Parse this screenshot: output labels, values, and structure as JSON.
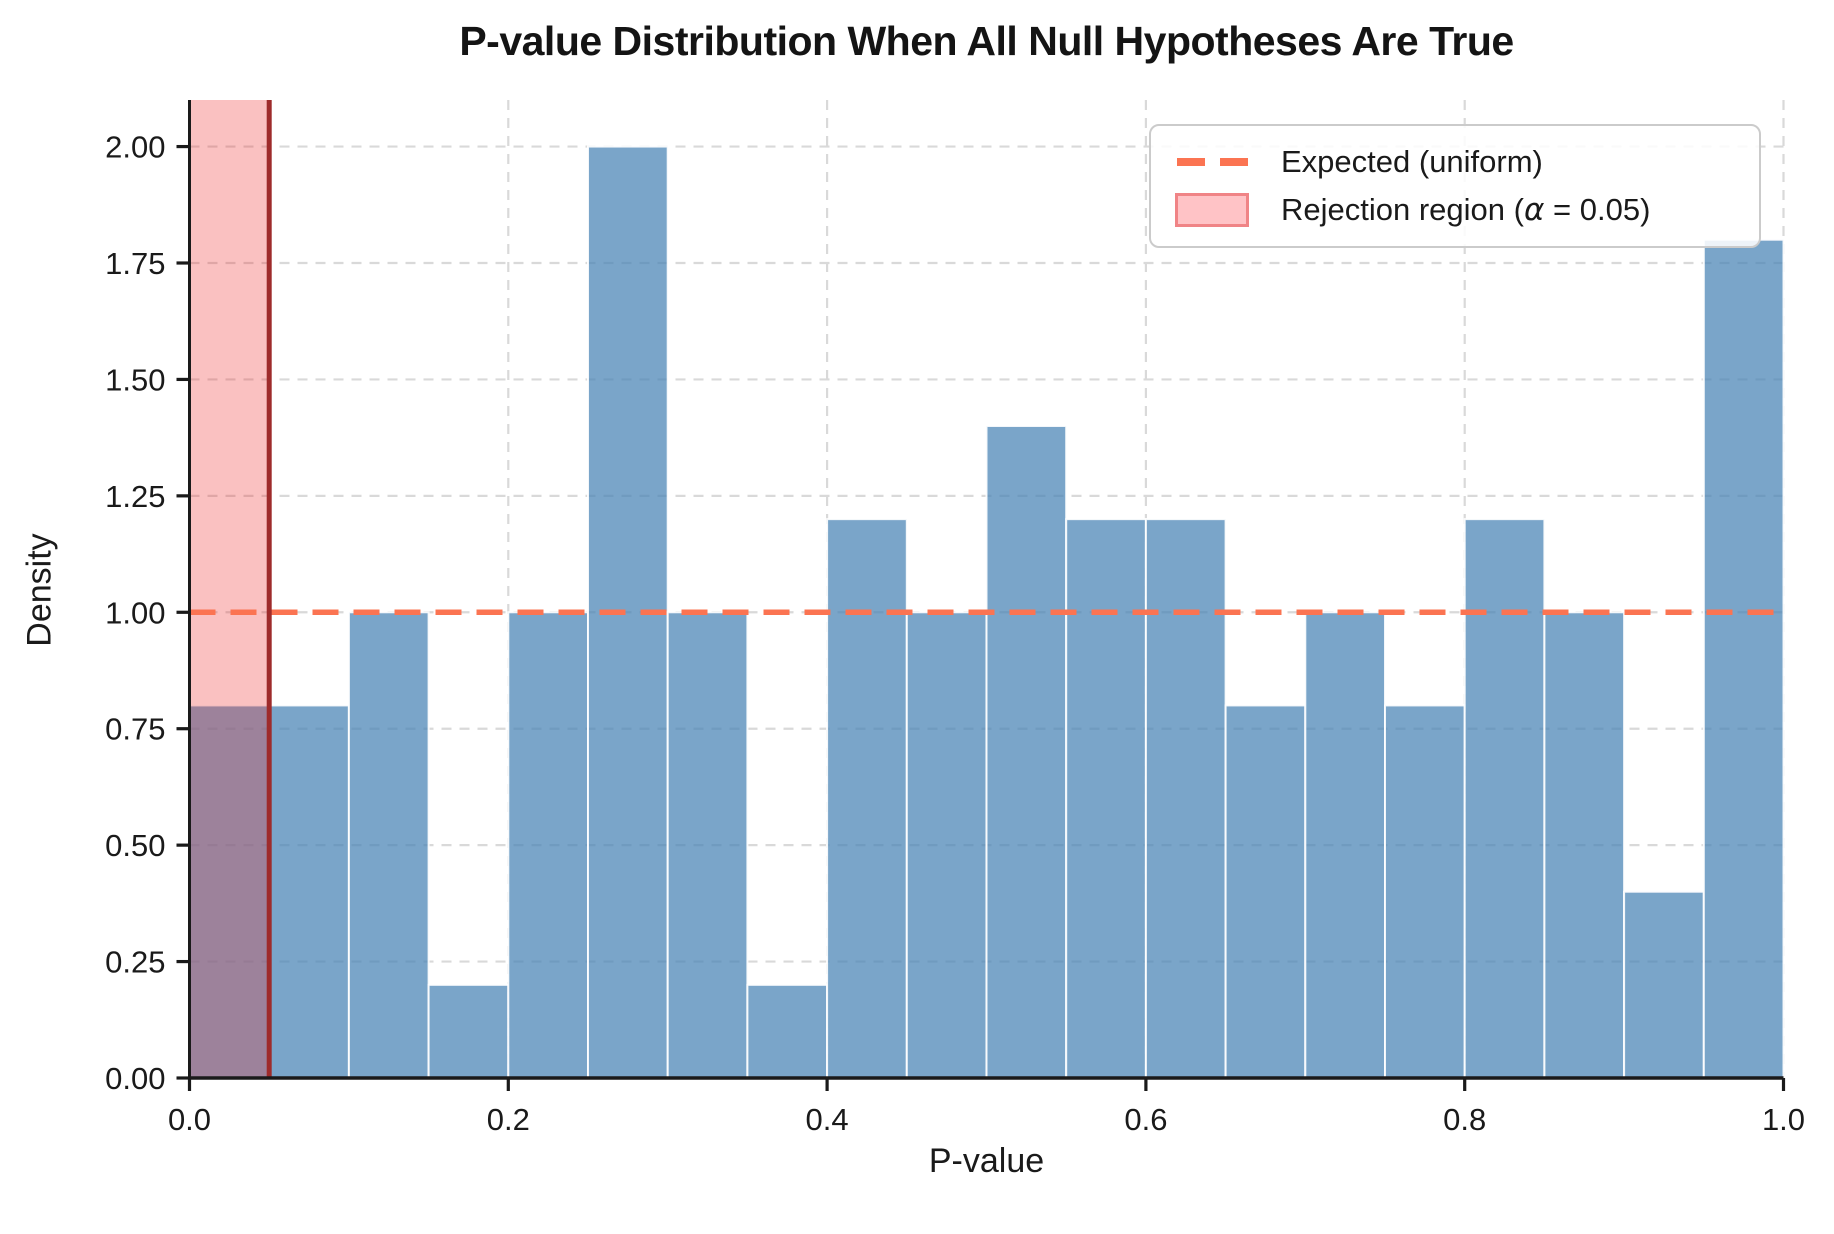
{
  "title": "P-value Distribution When All Null Hypotheses Are True",
  "chart_data": {
    "type": "bar",
    "subtype": "histogram",
    "title": "P-value Distribution When All Null Hypotheses Are True",
    "xlabel": "P-value",
    "ylabel": "Density",
    "xlim": [
      0.0,
      1.0
    ],
    "ylim": [
      0.0,
      2.1
    ],
    "grid": true,
    "legend_position": "upper right",
    "bin_start": 0.0,
    "bin_width": 0.05,
    "n_bins": 20,
    "densities": [
      0.8,
      0.8,
      1.0,
      0.2,
      1.0,
      2.0,
      1.0,
      0.2,
      1.2,
      1.0,
      1.4,
      1.2,
      1.2,
      0.8,
      1.0,
      0.8,
      1.2,
      1.0,
      0.4,
      1.8
    ],
    "x_ticks": {
      "values": [
        0.0,
        0.2,
        0.4,
        0.6,
        0.8,
        1.0
      ],
      "labels": [
        "0.0",
        "0.2",
        "0.4",
        "0.6",
        "0.8",
        "1.0"
      ]
    },
    "y_ticks": {
      "values": [
        0.0,
        0.25,
        0.5,
        0.75,
        1.0,
        1.25,
        1.5,
        1.75,
        2.0
      ],
      "labels": [
        "0.00",
        "0.25",
        "0.50",
        "0.75",
        "1.00",
        "1.25",
        "1.50",
        "1.75",
        "2.00"
      ]
    },
    "expected_line": {
      "y": 1.0,
      "style": "dashed",
      "label": "Expected (uniform)"
    },
    "rejection_region": {
      "x0": 0.0,
      "x1": 0.05,
      "alpha": 0.05,
      "boundary_x": 0.05
    }
  },
  "colors": {
    "bar_fill": "rgba(70,130,180,0.72)",
    "bar_edge": "rgba(255,255,255,0.9)",
    "region_fill": "rgba(240,50,50,0.30)",
    "region_boundary": "#9e2b2b",
    "expected_line": "#fb7452",
    "gridline": "#d9d9d9",
    "axis": "#1a1a1a",
    "legend_border": "#cbcbcb",
    "legend_patch_fill": "#ffc3c6",
    "legend_patch_edge": "#f08486"
  },
  "legend": {
    "items": [
      {
        "label": "Expected (uniform)"
      },
      {
        "prefix": "Rejection region (",
        "alpha": "α",
        "suffix": " = 0.05)"
      }
    ]
  }
}
